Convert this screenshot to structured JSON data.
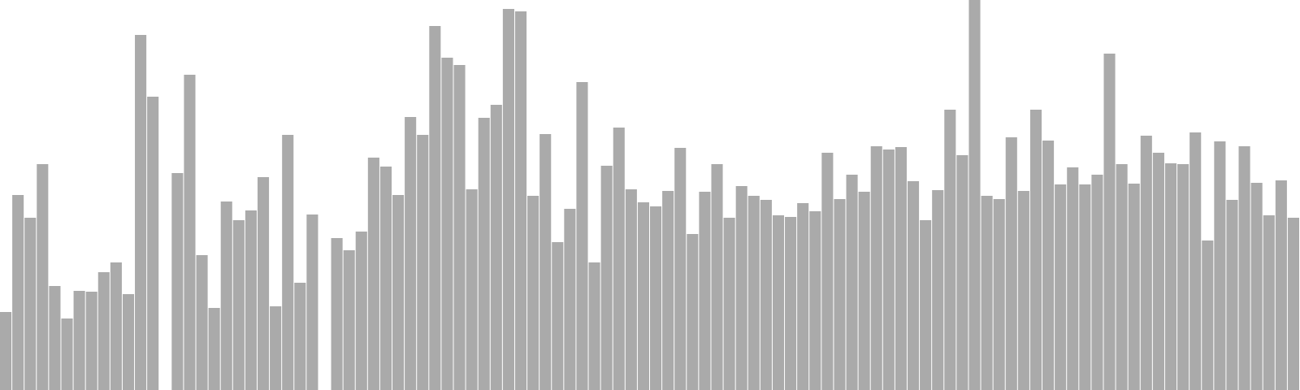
{
  "chart_data": {
    "type": "bar",
    "title": "",
    "xlabel": "",
    "ylabel": "",
    "ylim": [
      0,
      480
    ],
    "grid": false,
    "legend": "none",
    "bar_color": "#aaaaaa",
    "background": "#ffffff",
    "values": [
      96,
      240,
      212,
      278,
      128,
      88,
      122,
      121,
      145,
      157,
      118,
      437,
      361,
      null,
      267,
      388,
      166,
      101,
      232,
      209,
      221,
      262,
      103,
      314,
      132,
      216,
      null,
      187,
      172,
      195,
      286,
      275,
      240,
      336,
      314,
      448,
      409,
      400,
      247,
      335,
      351,
      469,
      466,
      239,
      315,
      182,
      223,
      379,
      157,
      276,
      323,
      247,
      231,
      226,
      245,
      298,
      192,
      244,
      278,
      212,
      251,
      239,
      234,
      215,
      213,
      230,
      220,
      292,
      235,
      265,
      244,
      300,
      296,
      299,
      257,
      209,
      246,
      345,
      289,
      480,
      239,
      235,
      311,
      245,
      345,
      307,
      253,
      274,
      253,
      265,
      414,
      278,
      254,
      313,
      292,
      279,
      278,
      317,
      184,
      306,
      234,
      300,
      255,
      215,
      258,
      212
    ]
  }
}
